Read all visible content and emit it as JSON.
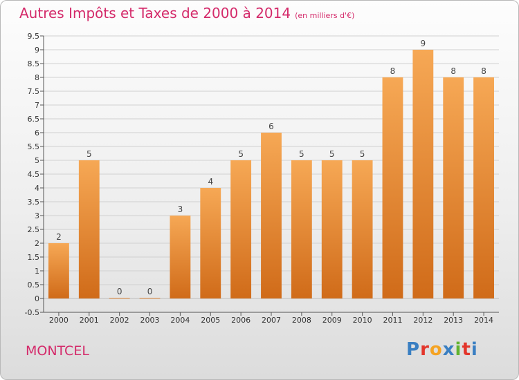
{
  "title": "Autres Impôts et Taxes de 2000 à 2014",
  "unit": "(en milliers d'€)",
  "commune": "MONTCEL",
  "logo": [
    "P",
    "r",
    "o",
    "x",
    "i",
    "t",
    "i"
  ],
  "colors": {
    "title": "#d42a6a",
    "bar_light": "#f6a855",
    "bar_dark": "#d06b19",
    "logo": [
      "#3a7fc2",
      "#e3352b",
      "#f5a323",
      "#3a7fc2",
      "#61b32f",
      "#e3352b",
      "#3a7fc2"
    ]
  },
  "chart_data": {
    "type": "bar",
    "categories": [
      "2000",
      "2001",
      "2002",
      "2003",
      "2004",
      "2005",
      "2006",
      "2007",
      "2008",
      "2009",
      "2010",
      "2011",
      "2012",
      "2013",
      "2014"
    ],
    "values": [
      2,
      5,
      0,
      0,
      3,
      4,
      5,
      6,
      5,
      5,
      5,
      8,
      9,
      8,
      8
    ],
    "value_labels": [
      "2",
      "5",
      "0",
      "0",
      "3",
      "4",
      "5",
      "6",
      "5",
      "5",
      "5",
      "8",
      "9",
      "8",
      "8"
    ],
    "ylim": [
      -0.5,
      9.5
    ],
    "yticks": [
      "9.5",
      "9",
      "8.5",
      "8",
      "7.5",
      "7",
      "6.5",
      "6",
      "5.5",
      "5",
      "4.5",
      "4",
      "3.5",
      "3",
      "2.5",
      "2",
      "1.5",
      "1",
      "0.5",
      "0",
      "-0.5"
    ],
    "grid": true
  }
}
